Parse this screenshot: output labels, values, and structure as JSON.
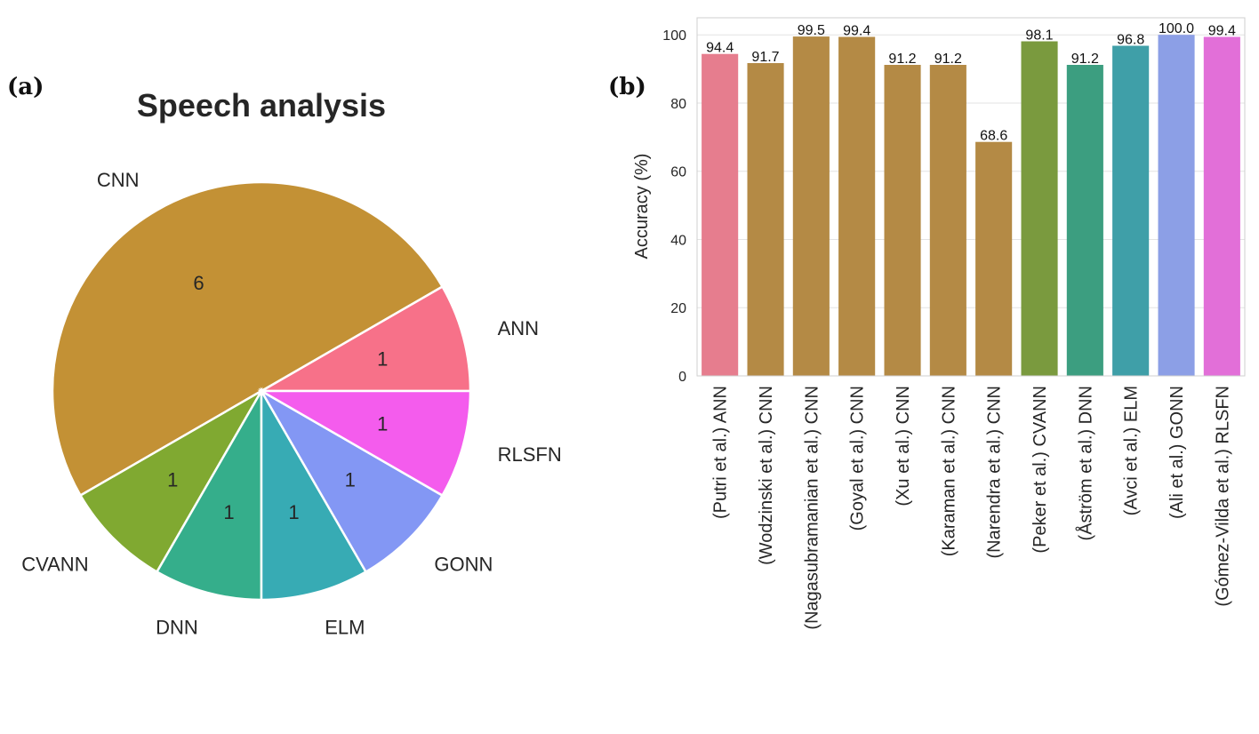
{
  "panels": {
    "a_label": "(a)",
    "b_label": "(b)"
  },
  "chart_data": [
    {
      "type": "pie",
      "title": "Speech analysis",
      "slices": [
        {
          "label": "ANN",
          "value": 1,
          "display": "1",
          "color": "#f77189"
        },
        {
          "label": "CNN",
          "value": 6,
          "display": "6",
          "color": "#c39135"
        },
        {
          "label": "CVANN",
          "value": 1,
          "display": "1",
          "color": "#80a931"
        },
        {
          "label": "DNN",
          "value": 1,
          "display": "1",
          "color": "#35ae8b"
        },
        {
          "label": "ELM",
          "value": 1,
          "display": "1",
          "color": "#37abb4"
        },
        {
          "label": "GONN",
          "value": 1,
          "display": "1",
          "color": "#8397f4"
        },
        {
          "label": "RLSFN",
          "value": 1,
          "display": "1",
          "color": "#f45ced"
        }
      ]
    },
    {
      "type": "bar",
      "ylabel": "Accuracy (%)",
      "ylim": [
        0,
        105
      ],
      "yticks": [
        "0",
        "20",
        "40",
        "60",
        "80",
        "100"
      ],
      "grid": true,
      "categories": [
        "(Putri et al.) ANN",
        "(Wodzinski et al.) CNN",
        "(Nagasubramanian et al.) CNN",
        "(Goyal et al.) CNN",
        "(Xu et al.) CNN",
        "(Karaman et al.) CNN",
        "(Narendra et al.) CNN",
        "(Peker et al.) CVANN",
        "(Åström et al.) DNN",
        "(Avci et al.) ELM",
        "(Ali et al.) GONN",
        "(Gómez-Vilda et al.) RLSFN"
      ],
      "values": [
        94.4,
        91.7,
        99.5,
        99.4,
        91.2,
        91.2,
        68.6,
        98.1,
        91.2,
        96.8,
        100.0,
        99.4
      ],
      "value_labels": [
        "94.4",
        "91.7",
        "99.5",
        "99.4",
        "91.2",
        "91.2",
        "68.6",
        "98.1",
        "91.2",
        "96.8",
        "100.0",
        "99.4"
      ],
      "colors": [
        "#e67d8e",
        "#b48a45",
        "#b48a45",
        "#b48a45",
        "#b48a45",
        "#b48a45",
        "#b48a45",
        "#7a9a3e",
        "#3c9e80",
        "#3f9fa8",
        "#8c9fe6",
        "#e26fd8"
      ]
    }
  ]
}
